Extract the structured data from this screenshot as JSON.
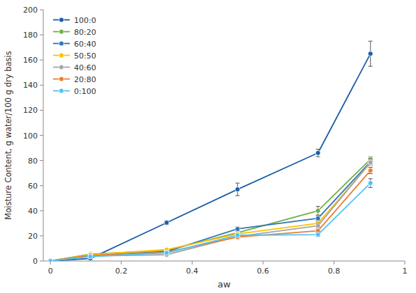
{
  "chart_data": {
    "type": "line",
    "xlabel": "aw",
    "ylabel": "Moisture Content, g water/100 g dry basis",
    "xlim": [
      -0.02,
      1.0
    ],
    "ylim": [
      0,
      200
    ],
    "xticks": [
      0,
      0.2,
      0.4,
      0.6,
      0.8,
      1
    ],
    "yticks": [
      0,
      20,
      40,
      60,
      80,
      100,
      120,
      140,
      160,
      180,
      200
    ],
    "grid": false,
    "legend": "upper left",
    "marker": "circle",
    "x": [
      0,
      0.113,
      0.328,
      0.528,
      0.755,
      0.903
    ],
    "series": [
      {
        "name": "100:0",
        "color": "#1a5ea8",
        "values": [
          0,
          2.0,
          30.5,
          57.0,
          86.0,
          165.0
        ],
        "yerr": [
          0,
          0.4,
          1.5,
          5.0,
          3.0,
          10.0
        ]
      },
      {
        "name": "80:20",
        "color": "#70ad47",
        "values": [
          0,
          5.5,
          8.5,
          22.5,
          40.0,
          81.0
        ],
        "yerr": [
          0,
          0.4,
          0.5,
          1.5,
          3.5,
          2.0
        ]
      },
      {
        "name": "60:40",
        "color": "#2e75b6",
        "values": [
          0,
          4.5,
          7.5,
          25.5,
          34.0,
          79.0
        ],
        "yerr": [
          0,
          0.4,
          0.5,
          1.5,
          2.0,
          2.0
        ]
      },
      {
        "name": "50:50",
        "color": "#ffc000",
        "values": [
          0,
          5.0,
          9.0,
          21.5,
          30.0,
          78.0
        ],
        "yerr": [
          0,
          0.4,
          0.5,
          1.0,
          2.0,
          2.0
        ]
      },
      {
        "name": "40:60",
        "color": "#a5a5a5",
        "values": [
          0,
          4.0,
          5.0,
          19.5,
          28.0,
          78.5
        ],
        "yerr": [
          0,
          0.3,
          0.5,
          1.0,
          2.0,
          1.5
        ]
      },
      {
        "name": "20:80",
        "color": "#ed7d31",
        "values": [
          0,
          4.5,
          7.0,
          19.0,
          24.0,
          72.0
        ],
        "yerr": [
          0,
          0.4,
          0.5,
          1.0,
          1.5,
          2.5
        ]
      },
      {
        "name": "0:100",
        "color": "#4fc3f7",
        "values": [
          0,
          3.5,
          6.5,
          20.5,
          21.0,
          62.0
        ],
        "yerr": [
          0,
          0.3,
          0.5,
          1.0,
          1.5,
          3.5
        ]
      }
    ]
  }
}
